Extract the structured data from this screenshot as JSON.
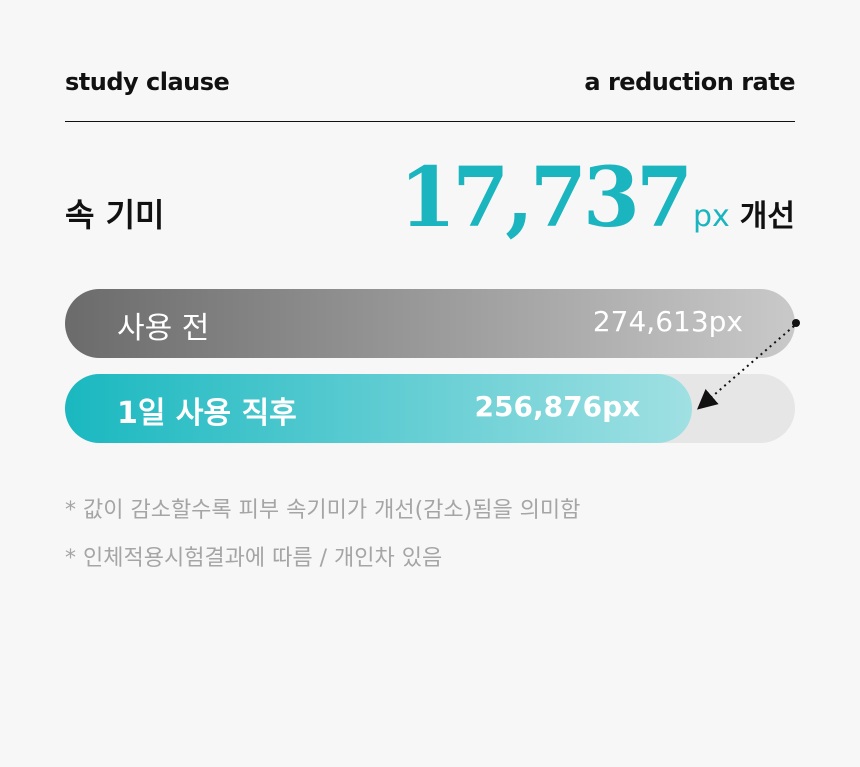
{
  "header": {
    "left": "study clause",
    "right": "a reduction rate"
  },
  "metric": {
    "label": "속 기미",
    "value": "17,737",
    "unit": "px",
    "suffix": "개선"
  },
  "colors": {
    "accent": "#1ab5be",
    "before_start": "#6b6b6b",
    "before_end": "#c9c9c9",
    "after_start": "#1ab8c0",
    "after_end": "#a0e0e3",
    "track": "#e6e6e6"
  },
  "chart_data": {
    "type": "bar",
    "orientation": "horizontal",
    "categories": [
      "사용 전",
      "1일 사용 직후"
    ],
    "values": [
      274613,
      256876
    ],
    "value_labels": [
      "274,613px",
      "256,876px"
    ],
    "unit": "px"
  },
  "notes": [
    "* 값이 감소할수록 피부 속기미가 개선(감소)됨을 의미함",
    "* 인체적용시험결과에 따름 / 개인차 있음"
  ]
}
